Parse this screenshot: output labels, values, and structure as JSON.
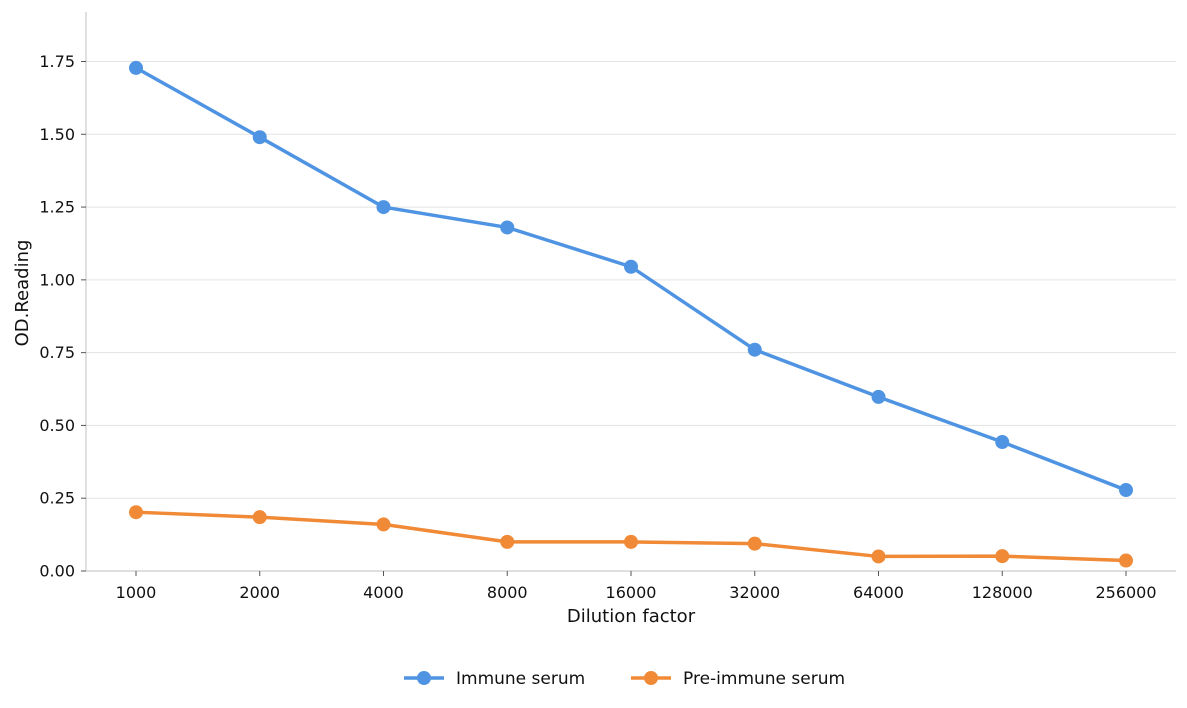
{
  "chart_data": {
    "type": "line",
    "title": "",
    "xlabel": "Dilution factor",
    "ylabel": "OD.Reading",
    "categories": [
      "1000",
      "2000",
      "4000",
      "8000",
      "16000",
      "32000",
      "64000",
      "128000",
      "256000"
    ],
    "ylim": [
      0,
      1.92
    ],
    "yticks": [
      "0.00",
      "0.25",
      "0.50",
      "0.75",
      "1.00",
      "1.25",
      "1.50",
      "1.75"
    ],
    "grid": "horizontal",
    "legend_position": "bottom-center",
    "series": [
      {
        "name": "Immune serum",
        "color": "#4f94e2",
        "values": [
          1.728,
          1.49,
          1.25,
          1.18,
          1.045,
          0.76,
          0.598,
          0.443,
          0.278
        ]
      },
      {
        "name": "Pre-immune serum",
        "color": "#f08a36",
        "values": [
          0.202,
          0.185,
          0.16,
          0.1,
          0.1,
          0.094,
          0.05,
          0.051,
          0.036
        ]
      }
    ]
  }
}
